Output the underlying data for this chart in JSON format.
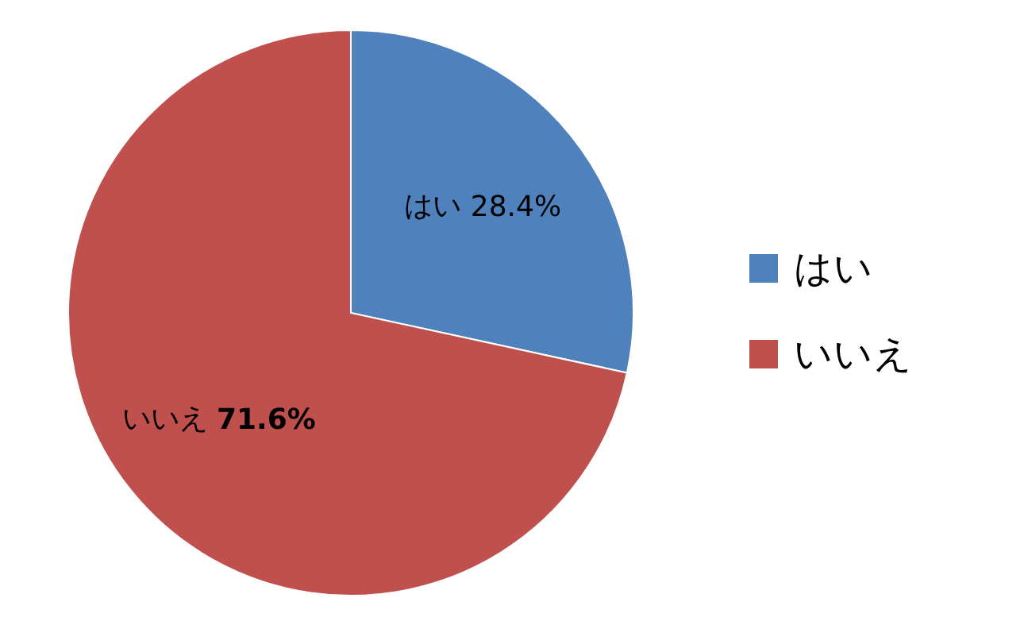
{
  "chart_data": {
    "type": "pie",
    "categories": [
      "はい",
      "いいえ"
    ],
    "values": [
      28.4,
      71.6
    ],
    "value_labels": [
      "28.4%",
      "71.6%"
    ],
    "colors": [
      "#4f81bd",
      "#c0504d"
    ],
    "legend": "right"
  }
}
